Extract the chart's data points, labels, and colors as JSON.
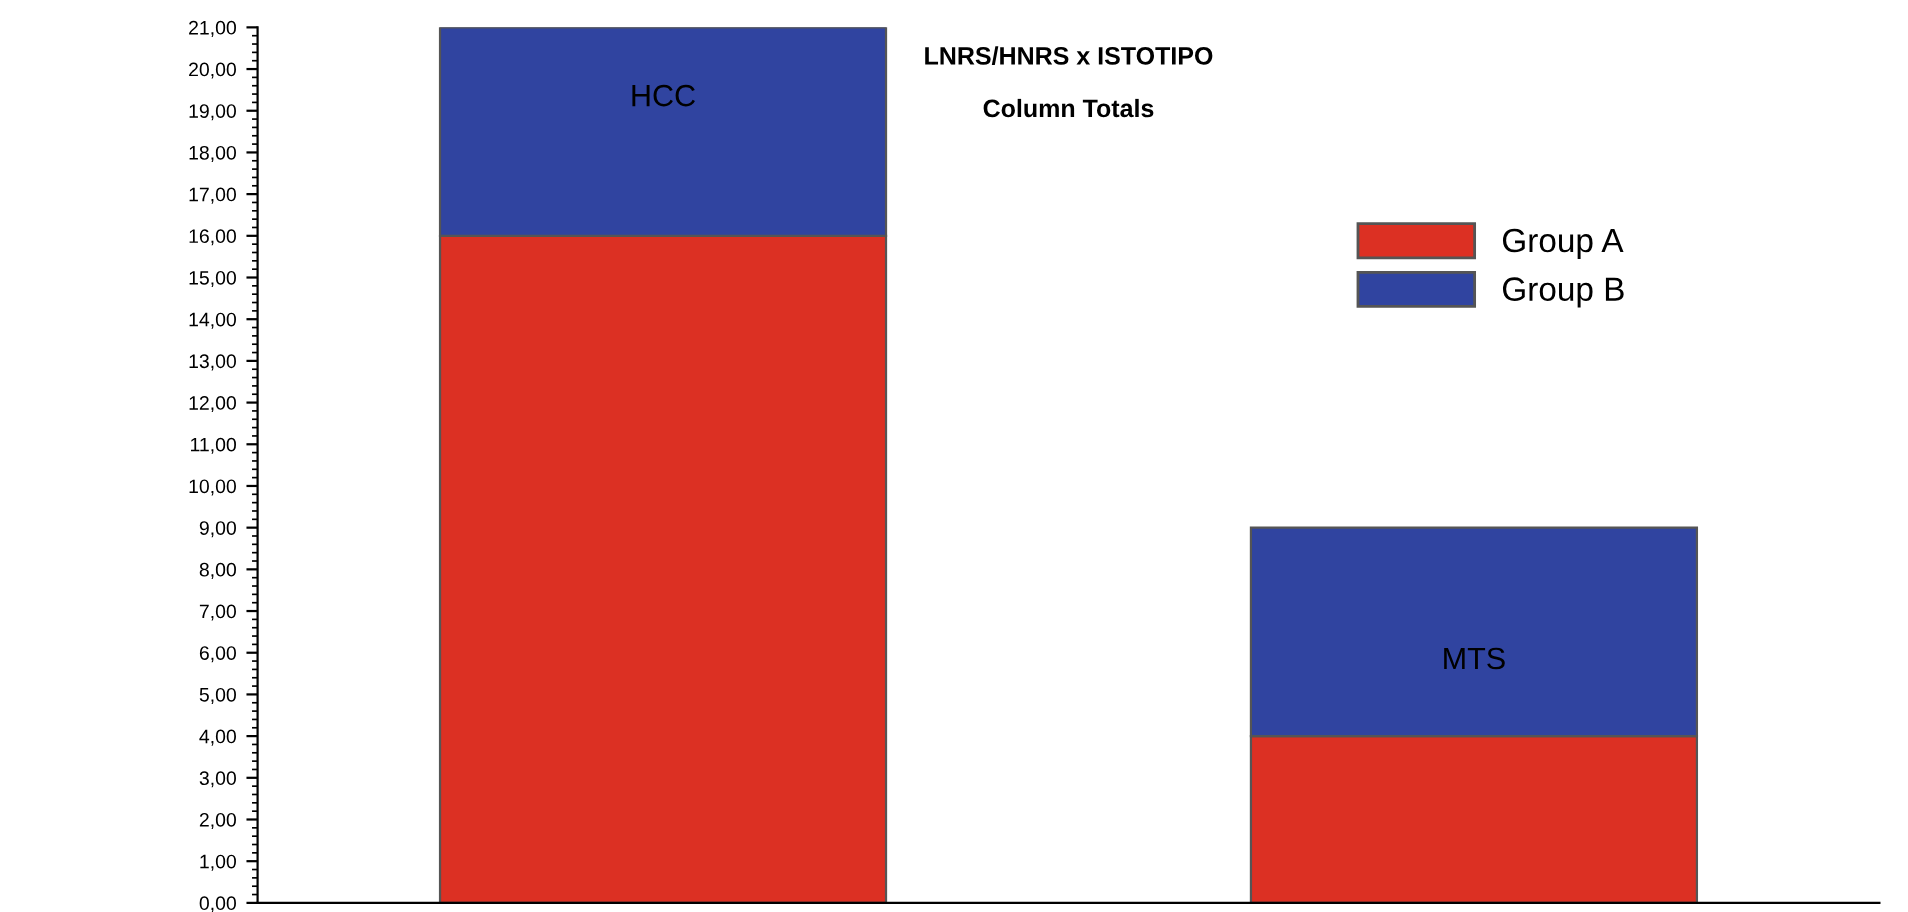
{
  "chart_data": {
    "type": "bar",
    "title": "LNRS/HNRS x ISTOTIPO",
    "subtitle": "Column Totals",
    "categories": [
      "HCC",
      "MTS"
    ],
    "stacked": true,
    "series": [
      {
        "name": "Group A",
        "color": "#dc3023",
        "values": [
          16,
          4
        ]
      },
      {
        "name": "Group B",
        "color": "#3044a0",
        "values": [
          5,
          5
        ]
      }
    ],
    "ylim": [
      0,
      21
    ],
    "yticks": [
      {
        "value": 0,
        "label": "0,00"
      },
      {
        "value": 1,
        "label": "1,00"
      },
      {
        "value": 2,
        "label": "2,00"
      },
      {
        "value": 3,
        "label": "3,00"
      },
      {
        "value": 4,
        "label": "4,00"
      },
      {
        "value": 5,
        "label": "5,00"
      },
      {
        "value": 6,
        "label": "6,00"
      },
      {
        "value": 7,
        "label": "7,00"
      },
      {
        "value": 8,
        "label": "8,00"
      },
      {
        "value": 9,
        "label": "9,00"
      },
      {
        "value": 10,
        "label": "10,00"
      },
      {
        "value": 11,
        "label": "11,00"
      },
      {
        "value": 12,
        "label": "12,00"
      },
      {
        "value": 13,
        "label": "13,00"
      },
      {
        "value": 14,
        "label": "14,00"
      },
      {
        "value": 15,
        "label": "15,00"
      },
      {
        "value": 16,
        "label": "16,00"
      },
      {
        "value": 17,
        "label": "17,00"
      },
      {
        "value": 18,
        "label": "18,00"
      },
      {
        "value": 19,
        "label": "19,00"
      },
      {
        "value": 20,
        "label": "20,00"
      },
      {
        "value": 21,
        "label": "21,00"
      }
    ],
    "grid": false,
    "legend": "top right"
  }
}
